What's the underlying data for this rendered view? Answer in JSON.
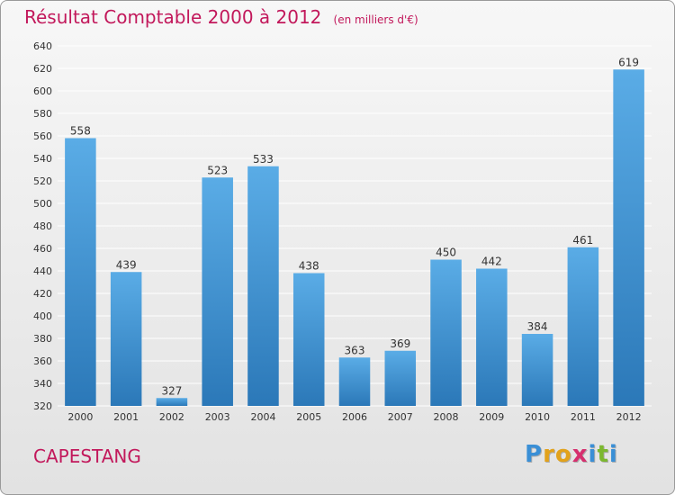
{
  "chart_data": {
    "type": "bar",
    "title": "Résultat Comptable 2000 à 2012",
    "subtitle": "(en milliers d'€)",
    "categories": [
      "2000",
      "2001",
      "2002",
      "2003",
      "2004",
      "2005",
      "2006",
      "2007",
      "2008",
      "2009",
      "2010",
      "2011",
      "2012"
    ],
    "values": [
      558,
      439,
      327,
      523,
      533,
      438,
      363,
      369,
      450,
      442,
      384,
      461,
      619
    ],
    "ylim": [
      320,
      640
    ],
    "yticks": [
      320,
      340,
      360,
      380,
      400,
      420,
      440,
      460,
      480,
      500,
      520,
      540,
      560,
      580,
      600,
      620,
      640
    ],
    "grid": true,
    "data_labels": true,
    "bar_color_top": "#5aace6",
    "bar_color_bottom": "#2b78b8"
  },
  "footer": {
    "city": "CAPESTANG",
    "brand_letters": [
      "P",
      "r",
      "o",
      "x",
      "i",
      "t",
      "i"
    ],
    "brand_colors": [
      "#3a8fd6",
      "#e2a21c",
      "#e2a21c",
      "#d62f6e",
      "#3a8fd6",
      "#7cb82f",
      "#3a8fd6"
    ]
  },
  "colors": {
    "title": "#c2185b",
    "grid": "#ffffff",
    "axis_text": "#333333"
  }
}
